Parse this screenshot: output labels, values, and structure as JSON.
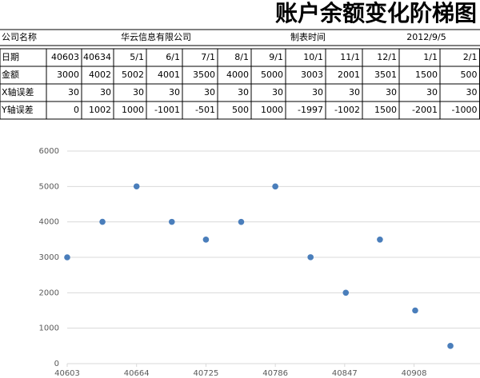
{
  "header": {
    "title": "账户余额变化阶梯图",
    "info": [
      "公司名称",
      "华云信息有限公司",
      "制表时间",
      "2012/9/5"
    ]
  },
  "table": {
    "rows": [
      [
        "日期",
        "40603",
        "40634",
        "5/1",
        "6/1",
        "7/1",
        "8/1",
        "9/1",
        "10/1",
        "11/1",
        "12/1",
        "1/1",
        "2/1"
      ],
      [
        "金额",
        "3000",
        "4002",
        "5002",
        "4001",
        "3500",
        "4000",
        "5000",
        "3003",
        "2001",
        "3501",
        "1500",
        "500"
      ],
      [
        "X轴误差",
        "30",
        "30",
        "30",
        "30",
        "30",
        "30",
        "30",
        "30",
        "30",
        "30",
        "30",
        "30"
      ],
      [
        "Y轴误差",
        "0",
        "1002",
        "1000",
        "-1001",
        "-501",
        "500",
        "1000",
        "-1997",
        "-1002",
        "1500",
        "-2001",
        "-1000"
      ]
    ]
  },
  "chart_data": {
    "type": "scatter",
    "color": "#4a7ebb",
    "grid": true,
    "x": [
      40603,
      40634,
      40664,
      40695,
      40725,
      40756,
      40786,
      40817,
      40848,
      40878,
      40909,
      40940
    ],
    "values": [
      3000,
      4002,
      5002,
      4001,
      3500,
      4000,
      5000,
      3003,
      2001,
      3501,
      1500,
      500
    ],
    "xlim": [
      40603,
      40966
    ],
    "ylim": [
      0,
      6000
    ],
    "xticks": [
      40603,
      40664,
      40725,
      40786,
      40847,
      40908
    ],
    "yticks": [
      0,
      1000,
      2000,
      3000,
      4000,
      5000,
      6000
    ]
  }
}
